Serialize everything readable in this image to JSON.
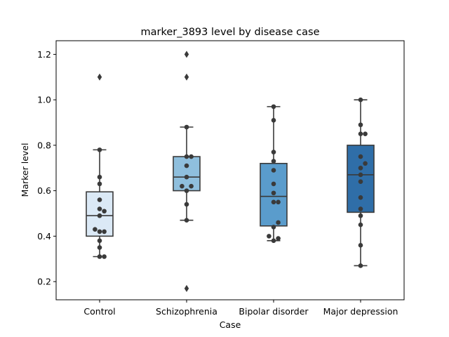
{
  "chart_data": {
    "type": "box",
    "title": "marker_3893 level by disease case",
    "xlabel": "Case",
    "ylabel": "Marker level",
    "ylim": [
      0.12,
      1.26
    ],
    "yticks": [
      "0.2",
      "0.4",
      "0.6",
      "0.8",
      "1.0",
      "1.2"
    ],
    "grid": false,
    "categories": [
      "Control",
      "Schizophrenia",
      "Bipolar disorder",
      "Major depression"
    ],
    "colors": [
      "#dbe9f6",
      "#8fbfdd",
      "#5a9ccc",
      "#2f6ea8"
    ],
    "boxes": [
      {
        "category": "Control",
        "whisker_low": 0.31,
        "q1": 0.4,
        "median": 0.49,
        "q3": 0.595,
        "whisker_high": 0.78,
        "outliers": [
          1.1
        ]
      },
      {
        "category": "Schizophrenia",
        "whisker_low": 0.47,
        "q1": 0.6,
        "median": 0.66,
        "q3": 0.75,
        "whisker_high": 0.88,
        "outliers": [
          0.17,
          1.1,
          1.2
        ]
      },
      {
        "category": "Bipolar disorder",
        "whisker_low": 0.38,
        "q1": 0.445,
        "median": 0.575,
        "q3": 0.72,
        "whisker_high": 0.97,
        "outliers": []
      },
      {
        "category": "Major depression",
        "whisker_low": 0.27,
        "q1": 0.505,
        "median": 0.67,
        "q3": 0.8,
        "whisker_high": 1.0,
        "outliers": []
      }
    ],
    "points": [
      {
        "category": "Control",
        "values": [
          0.31,
          0.31,
          0.35,
          0.38,
          0.42,
          0.42,
          0.43,
          0.49,
          0.51,
          0.52,
          0.56,
          0.63,
          0.66,
          0.78
        ]
      },
      {
        "category": "Schizophrenia",
        "values": [
          0.47,
          0.54,
          0.6,
          0.62,
          0.62,
          0.66,
          0.71,
          0.75,
          0.75,
          0.88
        ]
      },
      {
        "category": "Bipolar disorder",
        "values": [
          0.38,
          0.39,
          0.4,
          0.44,
          0.46,
          0.55,
          0.55,
          0.59,
          0.63,
          0.69,
          0.73,
          0.77,
          0.91,
          0.97
        ]
      },
      {
        "category": "Major depression",
        "values": [
          0.27,
          0.36,
          0.45,
          0.49,
          0.52,
          0.57,
          0.64,
          0.67,
          0.7,
          0.72,
          0.75,
          0.85,
          0.85,
          0.89,
          1.0
        ]
      }
    ]
  }
}
